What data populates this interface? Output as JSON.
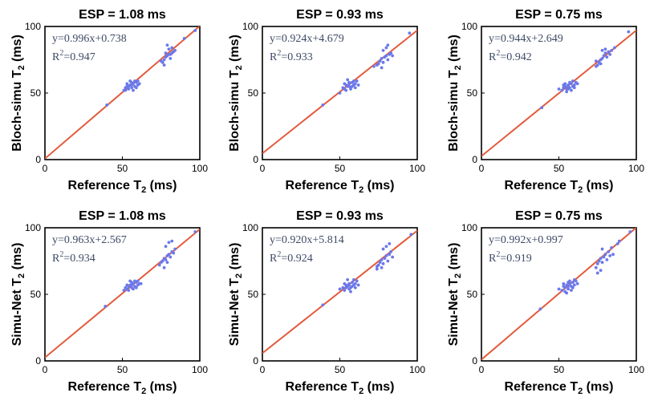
{
  "chart_data": [
    {
      "type": "scatter",
      "title": "ESP = 1.08 ms",
      "xlabel": "Reference T",
      "xlabel_sub": "2",
      "xlabel_unit": " (ms)",
      "ylabel": "Bloch-simu T",
      "ylabel_sub": "2",
      "ylabel_unit": " (ms)",
      "xlim": [
        0,
        100
      ],
      "ylim": [
        0,
        100
      ],
      "xticks": [
        "0",
        "50",
        "100"
      ],
      "yticks": [
        "0",
        "50",
        "100"
      ],
      "fit": {
        "slope": 0.996,
        "intercept": 0.738
      },
      "equation": "y=0.996x+0.738",
      "r2_label": "R",
      "r2_sup": "2",
      "r2_value": "=0.947",
      "points": [
        [
          40,
          41
        ],
        [
          51,
          52
        ],
        [
          52,
          54
        ],
        [
          53,
          55
        ],
        [
          54,
          53
        ],
        [
          55,
          56
        ],
        [
          56,
          54
        ],
        [
          57,
          57
        ],
        [
          58,
          55
        ],
        [
          59,
          58
        ],
        [
          60,
          56
        ],
        [
          61,
          57
        ],
        [
          55,
          59
        ],
        [
          57,
          52
        ],
        [
          53,
          57
        ],
        [
          58,
          59
        ],
        [
          56,
          56
        ],
        [
          54,
          55
        ],
        [
          59,
          54
        ],
        [
          52,
          52
        ],
        [
          56,
          58
        ],
        [
          60,
          59
        ],
        [
          75,
          74
        ],
        [
          76,
          73
        ],
        [
          77,
          75
        ],
        [
          78,
          77
        ],
        [
          79,
          78
        ],
        [
          80,
          79
        ],
        [
          81,
          76
        ],
        [
          82,
          80
        ],
        [
          83,
          81
        ],
        [
          84,
          82
        ],
        [
          78,
          80
        ],
        [
          80,
          83
        ],
        [
          82,
          84
        ],
        [
          79,
          86
        ],
        [
          77,
          71
        ],
        [
          81,
          79
        ],
        [
          90,
          91
        ],
        [
          97,
          97
        ]
      ]
    },
    {
      "type": "scatter",
      "title": "ESP = 0.93 ms",
      "xlabel": "Reference T",
      "xlabel_sub": "2",
      "xlabel_unit": " (ms)",
      "ylabel": "Bloch-simu T",
      "ylabel_sub": "2",
      "ylabel_unit": " (ms)",
      "xlim": [
        0,
        100
      ],
      "ylim": [
        0,
        100
      ],
      "xticks": [
        "0",
        "50",
        "100"
      ],
      "yticks": [
        "0",
        "50",
        "100"
      ],
      "fit": {
        "slope": 0.924,
        "intercept": 4.679
      },
      "equation": "y=0.924x+4.679",
      "r2_label": "R",
      "r2_sup": "2",
      "r2_value": "=0.933",
      "points": [
        [
          39,
          41
        ],
        [
          50,
          50
        ],
        [
          52,
          54
        ],
        [
          53,
          53
        ],
        [
          54,
          56
        ],
        [
          55,
          55
        ],
        [
          56,
          57
        ],
        [
          57,
          54
        ],
        [
          58,
          58
        ],
        [
          59,
          56
        ],
        [
          60,
          57
        ],
        [
          61,
          59
        ],
        [
          55,
          60
        ],
        [
          57,
          53
        ],
        [
          53,
          57
        ],
        [
          58,
          55
        ],
        [
          56,
          58
        ],
        [
          54,
          52
        ],
        [
          59,
          59
        ],
        [
          62,
          56
        ],
        [
          56,
          55
        ],
        [
          60,
          54
        ],
        [
          74,
          71
        ],
        [
          75,
          72
        ],
        [
          76,
          74
        ],
        [
          77,
          76
        ],
        [
          78,
          73
        ],
        [
          79,
          77
        ],
        [
          80,
          78
        ],
        [
          81,
          75
        ],
        [
          82,
          79
        ],
        [
          83,
          80
        ],
        [
          84,
          78
        ],
        [
          78,
          82
        ],
        [
          80,
          84
        ],
        [
          81,
          86
        ],
        [
          77,
          69
        ],
        [
          72,
          70
        ],
        [
          95,
          95
        ]
      ]
    },
    {
      "type": "scatter",
      "title": "ESP = 0.75 ms",
      "xlabel": "Reference T",
      "xlabel_sub": "2",
      "xlabel_unit": " (ms)",
      "ylabel": "Bloch-simu T",
      "ylabel_sub": "2",
      "ylabel_unit": " (ms)",
      "xlim": [
        0,
        100
      ],
      "ylim": [
        0,
        100
      ],
      "xticks": [
        "0",
        "50",
        "100"
      ],
      "yticks": [
        "0",
        "50",
        "100"
      ],
      "fit": {
        "slope": 0.944,
        "intercept": 2.649
      },
      "equation": "y=0.944x+2.649",
      "r2_label": "R",
      "r2_sup": "2",
      "r2_value": "=0.942",
      "points": [
        [
          39,
          39
        ],
        [
          50,
          53
        ],
        [
          52,
          52
        ],
        [
          53,
          54
        ],
        [
          54,
          55
        ],
        [
          55,
          53
        ],
        [
          56,
          56
        ],
        [
          57,
          54
        ],
        [
          58,
          57
        ],
        [
          59,
          55
        ],
        [
          60,
          56
        ],
        [
          61,
          58
        ],
        [
          55,
          51
        ],
        [
          57,
          58
        ],
        [
          53,
          56
        ],
        [
          58,
          52
        ],
        [
          56,
          55
        ],
        [
          54,
          57
        ],
        [
          59,
          59
        ],
        [
          62,
          57
        ],
        [
          56,
          53
        ],
        [
          60,
          54
        ],
        [
          74,
          70
        ],
        [
          75,
          71
        ],
        [
          76,
          73
        ],
        [
          77,
          75
        ],
        [
          78,
          76
        ],
        [
          79,
          78
        ],
        [
          80,
          80
        ],
        [
          81,
          77
        ],
        [
          82,
          81
        ],
        [
          83,
          79
        ],
        [
          84,
          82
        ],
        [
          78,
          82
        ],
        [
          80,
          83
        ],
        [
          86,
          84
        ],
        [
          74,
          74
        ],
        [
          77,
          72
        ],
        [
          95,
          96
        ]
      ]
    },
    {
      "type": "scatter",
      "title": "ESP = 1.08 ms",
      "xlabel": "Reference T",
      "xlabel_sub": "2",
      "xlabel_unit": " (ms)",
      "ylabel": "Simu-Net T",
      "ylabel_sub": "2",
      "ylabel_unit": " (ms)",
      "xlim": [
        0,
        100
      ],
      "ylim": [
        0,
        100
      ],
      "xticks": [
        "0",
        "50",
        "100"
      ],
      "yticks": [
        "0",
        "50",
        "100"
      ],
      "fit": {
        "slope": 0.963,
        "intercept": 2.567
      },
      "equation": "y=0.963x+2.567",
      "r2_label": "R",
      "r2_sup": "2",
      "r2_value": "=0.934",
      "points": [
        [
          39,
          41
        ],
        [
          51,
          53
        ],
        [
          52,
          55
        ],
        [
          53,
          54
        ],
        [
          54,
          56
        ],
        [
          55,
          57
        ],
        [
          56,
          55
        ],
        [
          57,
          58
        ],
        [
          58,
          56
        ],
        [
          59,
          59
        ],
        [
          60,
          57
        ],
        [
          61,
          58
        ],
        [
          55,
          60
        ],
        [
          57,
          54
        ],
        [
          53,
          57
        ],
        [
          58,
          60
        ],
        [
          56,
          57
        ],
        [
          54,
          53
        ],
        [
          59,
          55
        ],
        [
          62,
          58
        ],
        [
          56,
          59
        ],
        [
          60,
          60
        ],
        [
          74,
          72
        ],
        [
          75,
          74
        ],
        [
          76,
          75
        ],
        [
          77,
          77
        ],
        [
          78,
          76
        ],
        [
          79,
          79
        ],
        [
          80,
          80
        ],
        [
          81,
          78
        ],
        [
          82,
          82
        ],
        [
          83,
          81
        ],
        [
          84,
          84
        ],
        [
          78,
          86
        ],
        [
          80,
          89
        ],
        [
          82,
          90
        ],
        [
          77,
          70
        ],
        [
          79,
          74
        ],
        [
          97,
          97
        ]
      ]
    },
    {
      "type": "scatter",
      "title": "ESP = 0.93 ms",
      "xlabel": "Reference T",
      "xlabel_sub": "2",
      "xlabel_unit": " (ms)",
      "ylabel": "Simu-Net T",
      "ylabel_sub": "2",
      "ylabel_unit": " (ms)",
      "xlim": [
        0,
        100
      ],
      "ylim": [
        0,
        100
      ],
      "xticks": [
        "0",
        "50",
        "100"
      ],
      "yticks": [
        "0",
        "50",
        "100"
      ],
      "fit": {
        "slope": 0.92,
        "intercept": 5.814
      },
      "equation": "y=0.920x+5.814",
      "r2_label": "R",
      "r2_sup": "2",
      "r2_value": "=0.924",
      "points": [
        [
          39,
          42
        ],
        [
          50,
          54
        ],
        [
          52,
          55
        ],
        [
          53,
          53
        ],
        [
          54,
          57
        ],
        [
          55,
          56
        ],
        [
          56,
          58
        ],
        [
          57,
          55
        ],
        [
          58,
          59
        ],
        [
          59,
          57
        ],
        [
          60,
          58
        ],
        [
          61,
          60
        ],
        [
          55,
          61
        ],
        [
          57,
          52
        ],
        [
          53,
          58
        ],
        [
          58,
          56
        ],
        [
          56,
          54
        ],
        [
          54,
          55
        ],
        [
          59,
          61
        ],
        [
          62,
          57
        ],
        [
          56,
          57
        ],
        [
          60,
          55
        ],
        [
          74,
          69
        ],
        [
          75,
          72
        ],
        [
          76,
          74
        ],
        [
          77,
          76
        ],
        [
          78,
          73
        ],
        [
          79,
          77
        ],
        [
          80,
          79
        ],
        [
          81,
          75
        ],
        [
          82,
          80
        ],
        [
          83,
          82
        ],
        [
          84,
          78
        ],
        [
          78,
          84
        ],
        [
          80,
          86
        ],
        [
          82,
          88
        ],
        [
          77,
          70
        ],
        [
          74,
          71
        ],
        [
          96,
          95
        ]
      ]
    },
    {
      "type": "scatter",
      "title": "ESP = 0.75 ms",
      "xlabel": "Reference T",
      "xlabel_sub": "2",
      "xlabel_unit": " (ms)",
      "ylabel": "Simu-Net T",
      "ylabel_sub": "2",
      "ylabel_unit": " (ms)",
      "xlim": [
        0,
        100
      ],
      "ylim": [
        0,
        100
      ],
      "xticks": [
        "0",
        "50",
        "100"
      ],
      "yticks": [
        "0",
        "50",
        "100"
      ],
      "fit": {
        "slope": 0.992,
        "intercept": 0.997
      },
      "equation": "y=0.992x+0.997",
      "r2_label": "R",
      "r2_sup": "2",
      "r2_value": "=0.919",
      "points": [
        [
          38,
          39
        ],
        [
          50,
          54
        ],
        [
          52,
          53
        ],
        [
          53,
          56
        ],
        [
          54,
          55
        ],
        [
          55,
          57
        ],
        [
          56,
          54
        ],
        [
          57,
          58
        ],
        [
          58,
          56
        ],
        [
          59,
          59
        ],
        [
          60,
          57
        ],
        [
          61,
          60
        ],
        [
          55,
          51
        ],
        [
          57,
          60
        ],
        [
          53,
          58
        ],
        [
          58,
          53
        ],
        [
          56,
          56
        ],
        [
          54,
          52
        ],
        [
          59,
          55
        ],
        [
          62,
          58
        ],
        [
          56,
          59
        ],
        [
          60,
          61
        ],
        [
          74,
          70
        ],
        [
          75,
          73
        ],
        [
          76,
          75
        ],
        [
          77,
          77
        ],
        [
          78,
          74
        ],
        [
          79,
          78
        ],
        [
          80,
          80
        ],
        [
          81,
          76
        ],
        [
          82,
          82
        ],
        [
          83,
          79
        ],
        [
          84,
          85
        ],
        [
          75,
          66
        ],
        [
          77,
          68
        ],
        [
          78,
          84
        ],
        [
          85,
          80
        ],
        [
          88,
          88
        ],
        [
          89,
          90
        ],
        [
          96,
          97
        ]
      ]
    }
  ],
  "colors": {
    "points": "#6b78ea",
    "fit_line": "#e35a3c",
    "axes": "#000000",
    "equation_text": "#3d4a66"
  }
}
